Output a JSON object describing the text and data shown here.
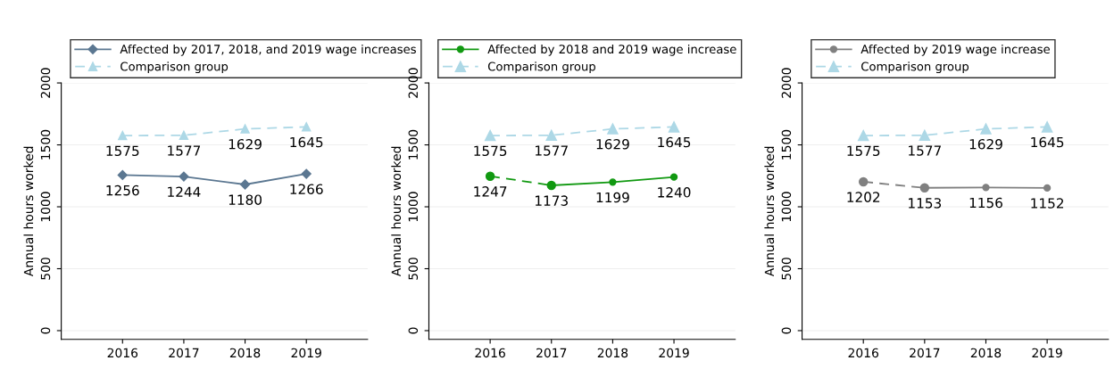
{
  "chart_data": [
    {
      "type": "line",
      "x": [
        2016,
        2017,
        2018,
        2019
      ],
      "ylabel": "Annual hours worked",
      "xlim": [
        2015,
        2020
      ],
      "ylim": [
        -70,
        2000
      ],
      "xticks": [
        2016,
        2017,
        2018,
        2019
      ],
      "yticks": [
        0,
        500,
        1000,
        1500,
        2000
      ],
      "grid": "y",
      "legend": "top",
      "data_labels": true,
      "series": [
        {
          "name": "Affected by 2017, 2018, and 2019 wage increases",
          "color": "#5b7791",
          "values": [
            1256,
            1244,
            1180,
            1266
          ],
          "marker": "diamond",
          "line_style": "solid"
        },
        {
          "name": "Comparison group",
          "color": "#add8e6",
          "values": [
            1575,
            1577,
            1629,
            1645
          ],
          "marker": "triangle",
          "line_style": "dashed"
        }
      ]
    },
    {
      "type": "line",
      "x": [
        2016,
        2017,
        2018,
        2019
      ],
      "ylabel": "Annual hours worked",
      "xlim": [
        2015,
        2020
      ],
      "ylim": [
        -70,
        2000
      ],
      "xticks": [
        2016,
        2017,
        2018,
        2019
      ],
      "yticks": [
        0,
        500,
        1000,
        1500,
        2000
      ],
      "grid": "y",
      "legend": "top",
      "data_labels": true,
      "series": [
        {
          "name": "Affected by 2018 and 2019 wage increase",
          "color": "#119911",
          "values": [
            null,
            1173,
            1199,
            1240
          ],
          "marker": "circle",
          "line_style": "solid"
        },
        {
          "color": "#119911",
          "values": [
            1247,
            1173,
            null,
            null
          ],
          "value_labels": [
            "1247",
            null,
            null,
            null
          ],
          "marker": "circle",
          "line_style": "dashed"
        },
        {
          "name": "Comparison group",
          "color": "#add8e6",
          "values": [
            1575,
            1577,
            1629,
            1645
          ],
          "marker": "triangle",
          "line_style": "dashed"
        }
      ]
    },
    {
      "type": "line",
      "x": [
        2016,
        2017,
        2018,
        2019
      ],
      "ylabel": "Annual hours worked",
      "xlim": [
        2015,
        2020
      ],
      "ylim": [
        -70,
        2000
      ],
      "xticks": [
        2016,
        2017,
        2018,
        2019
      ],
      "yticks": [
        0,
        500,
        1000,
        1500,
        2000
      ],
      "grid": "y",
      "legend": "top",
      "data_labels": true,
      "series": [
        {
          "name": "Affected by 2019 wage increase",
          "color": "#808080",
          "values": [
            null,
            1153,
            1156,
            1152
          ],
          "marker": "circle",
          "line_style": "solid"
        },
        {
          "color": "#808080",
          "values": [
            1202,
            1153,
            null,
            null
          ],
          "value_labels": [
            "1202",
            null,
            null,
            null
          ],
          "marker": "circle",
          "line_style": "dashed"
        },
        {
          "name": "Comparison group",
          "color": "#add8e6",
          "values": [
            1575,
            1577,
            1629,
            1645
          ],
          "marker": "triangle",
          "line_style": "dashed"
        }
      ]
    }
  ]
}
